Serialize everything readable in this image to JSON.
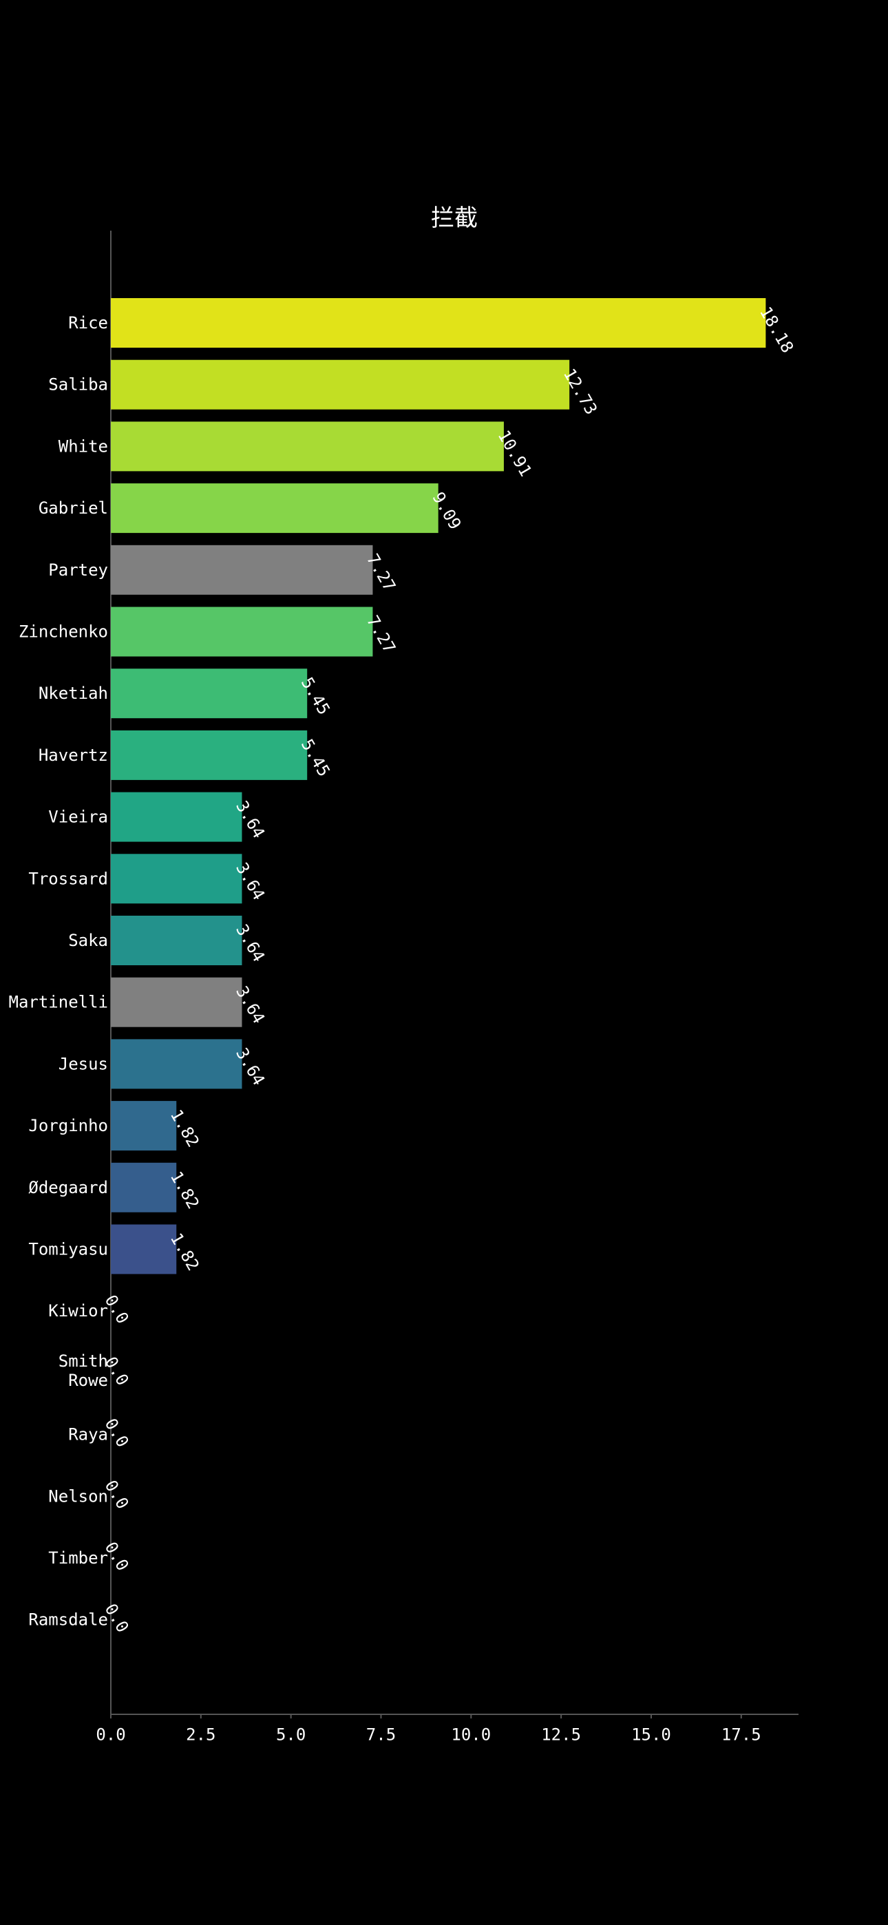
{
  "chart_data": {
    "type": "bar",
    "orientation": "horizontal",
    "title": "拦截",
    "xlabel": "",
    "ylabel": "",
    "xlim": [
      0,
      19.09
    ],
    "xticks": [
      "0.0",
      "2.5",
      "5.0",
      "7.5",
      "10.0",
      "12.5",
      "15.0",
      "17.5"
    ],
    "categories": [
      "Rice",
      "Saliba",
      "White",
      "Gabriel",
      "Partey",
      "Zinchenko",
      "Nketiah",
      "Havertz",
      "Vieira",
      "Trossard",
      "Saka",
      "Martinelli",
      "Jesus",
      "Jorginho",
      "Ødegaard",
      "Tomiyasu",
      "Kiwior",
      "Smith Rowe",
      "Raya",
      "Nelson",
      "Timber",
      "Ramsdale"
    ],
    "values": [
      18.18,
      12.73,
      10.91,
      9.09,
      7.27,
      7.27,
      5.45,
      5.45,
      3.64,
      3.64,
      3.64,
      3.64,
      3.64,
      1.82,
      1.82,
      1.82,
      0.0,
      0.0,
      0.0,
      0.0,
      0.0,
      0.0
    ],
    "value_labels": [
      "18.18",
      "12.73",
      "10.91",
      "9.09",
      "7.27",
      "7.27",
      "5.45",
      "5.45",
      "3.64",
      "3.64",
      "3.64",
      "3.64",
      "3.64",
      "1.82",
      "1.82",
      "1.82",
      "0.0",
      "0.0",
      "0.0",
      "0.0",
      "0.0",
      "0.0"
    ],
    "colors": [
      "#e1e318",
      "#c2df23",
      "#a8db34",
      "#86d549",
      "#808080",
      "#56c667",
      "#3dbc74",
      "#2ab07f",
      "#21a685",
      "#1f9e89",
      "#23928c",
      "#808080",
      "#2c728e",
      "#30698e",
      "#355e8d",
      "#3b518b",
      "#404387",
      "#453781",
      "#472878",
      "#48186a",
      "#471063",
      "#46085c"
    ],
    "grid": false,
    "legend": "none",
    "background": "#000000"
  }
}
